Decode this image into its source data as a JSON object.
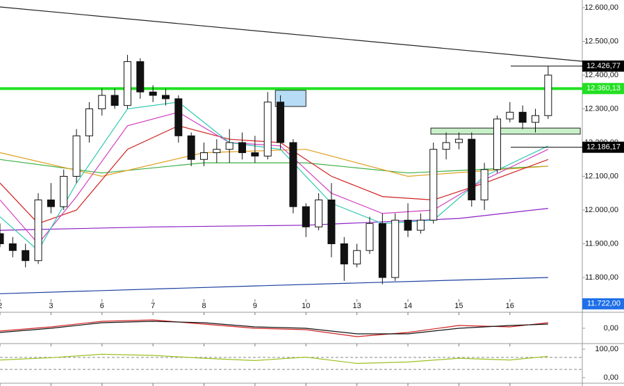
{
  "chart_data": {
    "type": "candlestick",
    "x": [
      0,
      0.25,
      0.5,
      0.75,
      1,
      1.25,
      1.5,
      1.75,
      2,
      2.25,
      2.5,
      2.75,
      3,
      3.25,
      3.5,
      3.75,
      4,
      4.25,
      4.5,
      4.75,
      5,
      5.25,
      5.5,
      5.75,
      6,
      6.25,
      6.5,
      6.75,
      7,
      7.25,
      7.5,
      7.75,
      8,
      8.25,
      8.5,
      8.75,
      9,
      9.25,
      9.5,
      9.75,
      10,
      10.25,
      10.5,
      10.75
    ],
    "open": [
      11930,
      11900,
      11880,
      11850,
      12030,
      12010,
      12100,
      12220,
      12300,
      12340,
      12310,
      12440,
      12350,
      12340,
      12330,
      12220,
      12150,
      12170,
      12180,
      12200,
      12170,
      12160,
      12320,
      12200,
      12010,
      11950,
      12030,
      11900,
      11840,
      11880,
      11960,
      11800,
      11970,
      11940,
      11970,
      12180,
      12200,
      12210,
      12030,
      12120,
      12270,
      12290,
      12260,
      12280
    ],
    "high": [
      11960,
      11920,
      11900,
      12050,
      12080,
      12120,
      12240,
      12320,
      12360,
      12360,
      12460,
      12450,
      12370,
      12360,
      12340,
      12230,
      12200,
      12210,
      12240,
      12230,
      12220,
      12350,
      12340,
      12210,
      12020,
      12050,
      12080,
      11920,
      11900,
      11980,
      11990,
      11990,
      12020,
      11990,
      12200,
      12230,
      12230,
      12230,
      12140,
      12280,
      12320,
      12310,
      12300,
      12426.77
    ],
    "low": [
      11890,
      11860,
      11830,
      11840,
      11990,
      12000,
      12080,
      12200,
      12280,
      12300,
      12300,
      12330,
      12320,
      12310,
      12200,
      12130,
      12130,
      12140,
      12140,
      12150,
      12140,
      12150,
      12180,
      11990,
      11920,
      11940,
      11860,
      11790,
      11830,
      11870,
      11780,
      11790,
      11920,
      11930,
      11960,
      12150,
      12180,
      12010,
      12000,
      12110,
      12260,
      12240,
      12230,
      12270
    ],
    "close": [
      11900,
      11880,
      11850,
      12030,
      12010,
      12100,
      12220,
      12300,
      12340,
      12310,
      12440,
      12350,
      12340,
      12330,
      12220,
      12150,
      12170,
      12180,
      12200,
      12170,
      12160,
      12320,
      12200,
      12010,
      11950,
      12030,
      11900,
      11840,
      11880,
      11960,
      11800,
      11970,
      11940,
      11970,
      12180,
      12200,
      12210,
      12030,
      12120,
      12270,
      12290,
      12260,
      12280,
      12400
    ],
    "xlim": [
      0,
      11.42
    ],
    "xticks": [
      {
        "value": 0,
        "label": "2"
      },
      {
        "value": 1,
        "label": "3"
      },
      {
        "value": 2,
        "label": "6"
      },
      {
        "value": 3,
        "label": "7"
      },
      {
        "value": 4,
        "label": "8"
      },
      {
        "value": 5,
        "label": "9"
      },
      {
        "value": 6,
        "label": "10"
      },
      {
        "value": 7,
        "label": "13"
      },
      {
        "value": 8,
        "label": "14"
      },
      {
        "value": 9,
        "label": "15"
      },
      {
        "value": 10,
        "label": "16"
      }
    ],
    "ylim": [
      11700,
      12620
    ],
    "yticks": [
      {
        "value": 12600,
        "label": "12.600,00"
      },
      {
        "value": 12500,
        "label": "12.500,00"
      },
      {
        "value": 12400,
        "label": "12.400,00"
      },
      {
        "value": 12300,
        "label": "12.300,00"
      },
      {
        "value": 12200,
        "label": "12.200,00"
      },
      {
        "value": 12100,
        "label": "12.100,00"
      },
      {
        "value": 12000,
        "label": "12.000,00"
      },
      {
        "value": 11900,
        "label": "11.900,00"
      },
      {
        "value": 11800,
        "label": "11.800,00"
      }
    ],
    "up_color": "#ffffff",
    "down_color": "#111111",
    "overlays": [
      {
        "color": "#1a3fa0",
        "x": [
          0,
          5,
          10.75
        ],
        "values": [
          11752,
          11775,
          11800
        ]
      },
      {
        "color": "#8a1fc4",
        "x": [
          0,
          3,
          6,
          9,
          10.75
        ],
        "values": [
          11940,
          11950,
          11955,
          11975,
          12005
        ]
      },
      {
        "color": "#3cb043",
        "x": [
          0,
          2,
          4,
          6,
          8,
          10.75
        ],
        "values": [
          12150,
          12110,
          12140,
          12140,
          12110,
          12130
        ]
      },
      {
        "color": "#e0a020",
        "x": [
          0,
          2,
          4,
          6,
          8,
          10.75
        ],
        "values": [
          12170,
          12100,
          12170,
          12180,
          12100,
          12130
        ]
      },
      {
        "color": "#d02020",
        "x": [
          0,
          0.75,
          1.5,
          2.5,
          3.5,
          4.5,
          5.5,
          6.5,
          7.5,
          8.5,
          9.5,
          10.75
        ],
        "values": [
          12080,
          11960,
          12000,
          12180,
          12250,
          12210,
          12200,
          12100,
          12040,
          12030,
          12080,
          12150
        ]
      },
      {
        "color": "#d040c0",
        "x": [
          0,
          0.75,
          1.5,
          2.5,
          3.5,
          4.5,
          5.5,
          6.5,
          7.5,
          8.5,
          9.5,
          10.75
        ],
        "values": [
          12030,
          11900,
          12040,
          12250,
          12290,
          12200,
          12190,
          12050,
          11990,
          12000,
          12090,
          12180
        ]
      },
      {
        "color": "#30c8b0",
        "x": [
          0,
          0.75,
          1.5,
          2.5,
          3.5,
          4.5,
          5.5,
          6.5,
          7.5,
          8.5,
          9.5,
          10.75
        ],
        "values": [
          11980,
          11880,
          12080,
          12300,
          12320,
          12200,
          12180,
          12020,
          11960,
          11970,
          12100,
          12190
        ]
      },
      {
        "color": "#222222",
        "x": [
          0,
          11.42
        ],
        "values": [
          12602,
          12441
        ]
      }
    ],
    "level": {
      "value": 12360.13,
      "color": "#22e022"
    },
    "zones": [
      {
        "x": [
          5.4,
          6.0
        ],
        "y": [
          12307,
          12355
        ],
        "color": "#b7dcf5"
      },
      {
        "x": [
          8.45,
          11.38
        ],
        "y": [
          12225,
          12243
        ],
        "color": "#c8f0c8"
      }
    ],
    "price_labels": [
      {
        "value": 12426.77,
        "label": "12.426,77",
        "color": "#000000"
      },
      {
        "value": 12360.13,
        "label": "12.360,13",
        "color": "#22e022"
      },
      {
        "value": 12186.17,
        "label": "12.186,17",
        "color": "#000000"
      },
      {
        "value": 11722,
        "label": "11.722,00",
        "color": "#1e6fe8"
      }
    ],
    "panels": [
      {
        "ylim": [
          -1,
          1
        ],
        "yticks": [
          {
            "value": 0,
            "label": "0,00"
          }
        ],
        "series": [
          {
            "color": "#d02020",
            "x": [
              0,
              1,
              2,
              3,
              4,
              5,
              6,
              7,
              8,
              9,
              10,
              10.75
            ],
            "values": [
              -0.2,
              0.1,
              0.5,
              0.6,
              0.3,
              0.0,
              -0.1,
              -0.6,
              -0.3,
              0.2,
              0.1,
              0.4
            ]
          },
          {
            "color": "#111111",
            "x": [
              0,
              1,
              2,
              3,
              4,
              5,
              6,
              7,
              8,
              9,
              10,
              10.75
            ],
            "values": [
              -0.3,
              0.0,
              0.4,
              0.5,
              0.4,
              0.1,
              0.0,
              -0.4,
              -0.4,
              0.0,
              0.2,
              0.3
            ]
          }
        ]
      },
      {
        "ylim": [
          0,
          100
        ],
        "yticks": [
          {
            "value": 100,
            "label": "100,00"
          },
          {
            "value": 0,
            "label": "0,00"
          }
        ],
        "levels": [
          71,
          29
        ],
        "series": [
          {
            "color": "#9cc020",
            "x": [
              0,
              1,
              2,
              3,
              4,
              5,
              6,
              7,
              8,
              9,
              10,
              10.75
            ],
            "values": [
              62,
              70,
              82,
              78,
              68,
              60,
              72,
              50,
              55,
              68,
              62,
              75
            ]
          }
        ]
      }
    ]
  }
}
